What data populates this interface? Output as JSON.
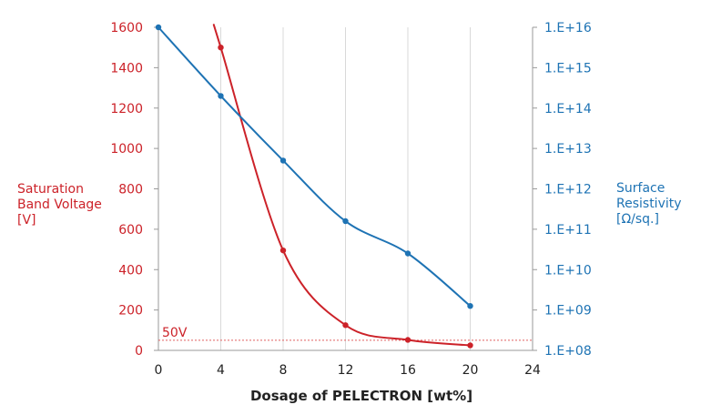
{
  "chart_data": {
    "type": "line",
    "xlabel": "Dosage of PELECTRON [wt%]",
    "x_ticks": [
      "0",
      "4",
      "8",
      "12",
      "16",
      "20",
      "24"
    ],
    "xlim": [
      0,
      24
    ],
    "grid": true,
    "ylabel_left": [
      "Saturation",
      "Band Voltage",
      "[V]"
    ],
    "ylabel_right": [
      "Surface",
      "Resistivity",
      "[Ω/sq.]"
    ],
    "y_left_ticks": [
      "0",
      "200",
      "400",
      "600",
      "800",
      "1000",
      "1200",
      "1400",
      "1600"
    ],
    "ylim_left": [
      0,
      1600
    ],
    "y_right_ticks": [
      "1.E+08",
      "1.E+09",
      "1.E+10",
      "1.E+11",
      "1.E+12",
      "1.E+13",
      "1.E+14",
      "1.E+15",
      "1.E+16"
    ],
    "ylim_right_log10": [
      8,
      16
    ],
    "y_right_scale": "log",
    "reference_line": {
      "value": 50,
      "label": "50V"
    },
    "series": [
      {
        "axis": "left",
        "color": "#cc2229",
        "x": [
          4,
          8,
          12,
          16,
          20
        ],
        "y": [
          1500,
          495,
          125,
          52,
          25
        ],
        "curve_start": {
          "x": 3.6,
          "y": 1600
        }
      },
      {
        "axis": "right",
        "color": "#1e73b4",
        "x": [
          0,
          4,
          8,
          12,
          16,
          20
        ],
        "y_log10": [
          16.0,
          14.3,
          12.7,
          11.2,
          10.4,
          9.1
        ]
      }
    ]
  }
}
